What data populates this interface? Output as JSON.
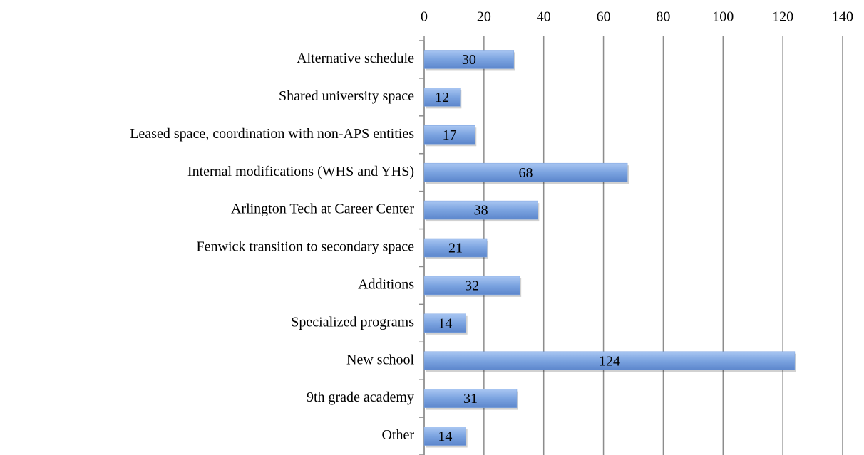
{
  "chart_data": {
    "type": "bar",
    "orientation": "horizontal",
    "categories": [
      "Alternative schedule",
      "Shared university space",
      "Leased space, coordination with non-APS entities",
      "Internal modifications (WHS and YHS)",
      "Arlington Tech at Career Center",
      "Fenwick transition to secondary space",
      "Additions",
      "Specialized programs",
      "New school",
      "9th grade academy",
      "Other"
    ],
    "values": [
      30,
      12,
      17,
      68,
      38,
      21,
      32,
      14,
      124,
      31,
      14
    ],
    "color": "#7ba3e0",
    "xlim": [
      0,
      140
    ],
    "xticks": [
      0,
      20,
      40,
      60,
      80,
      100,
      120,
      140
    ],
    "grid": true
  }
}
